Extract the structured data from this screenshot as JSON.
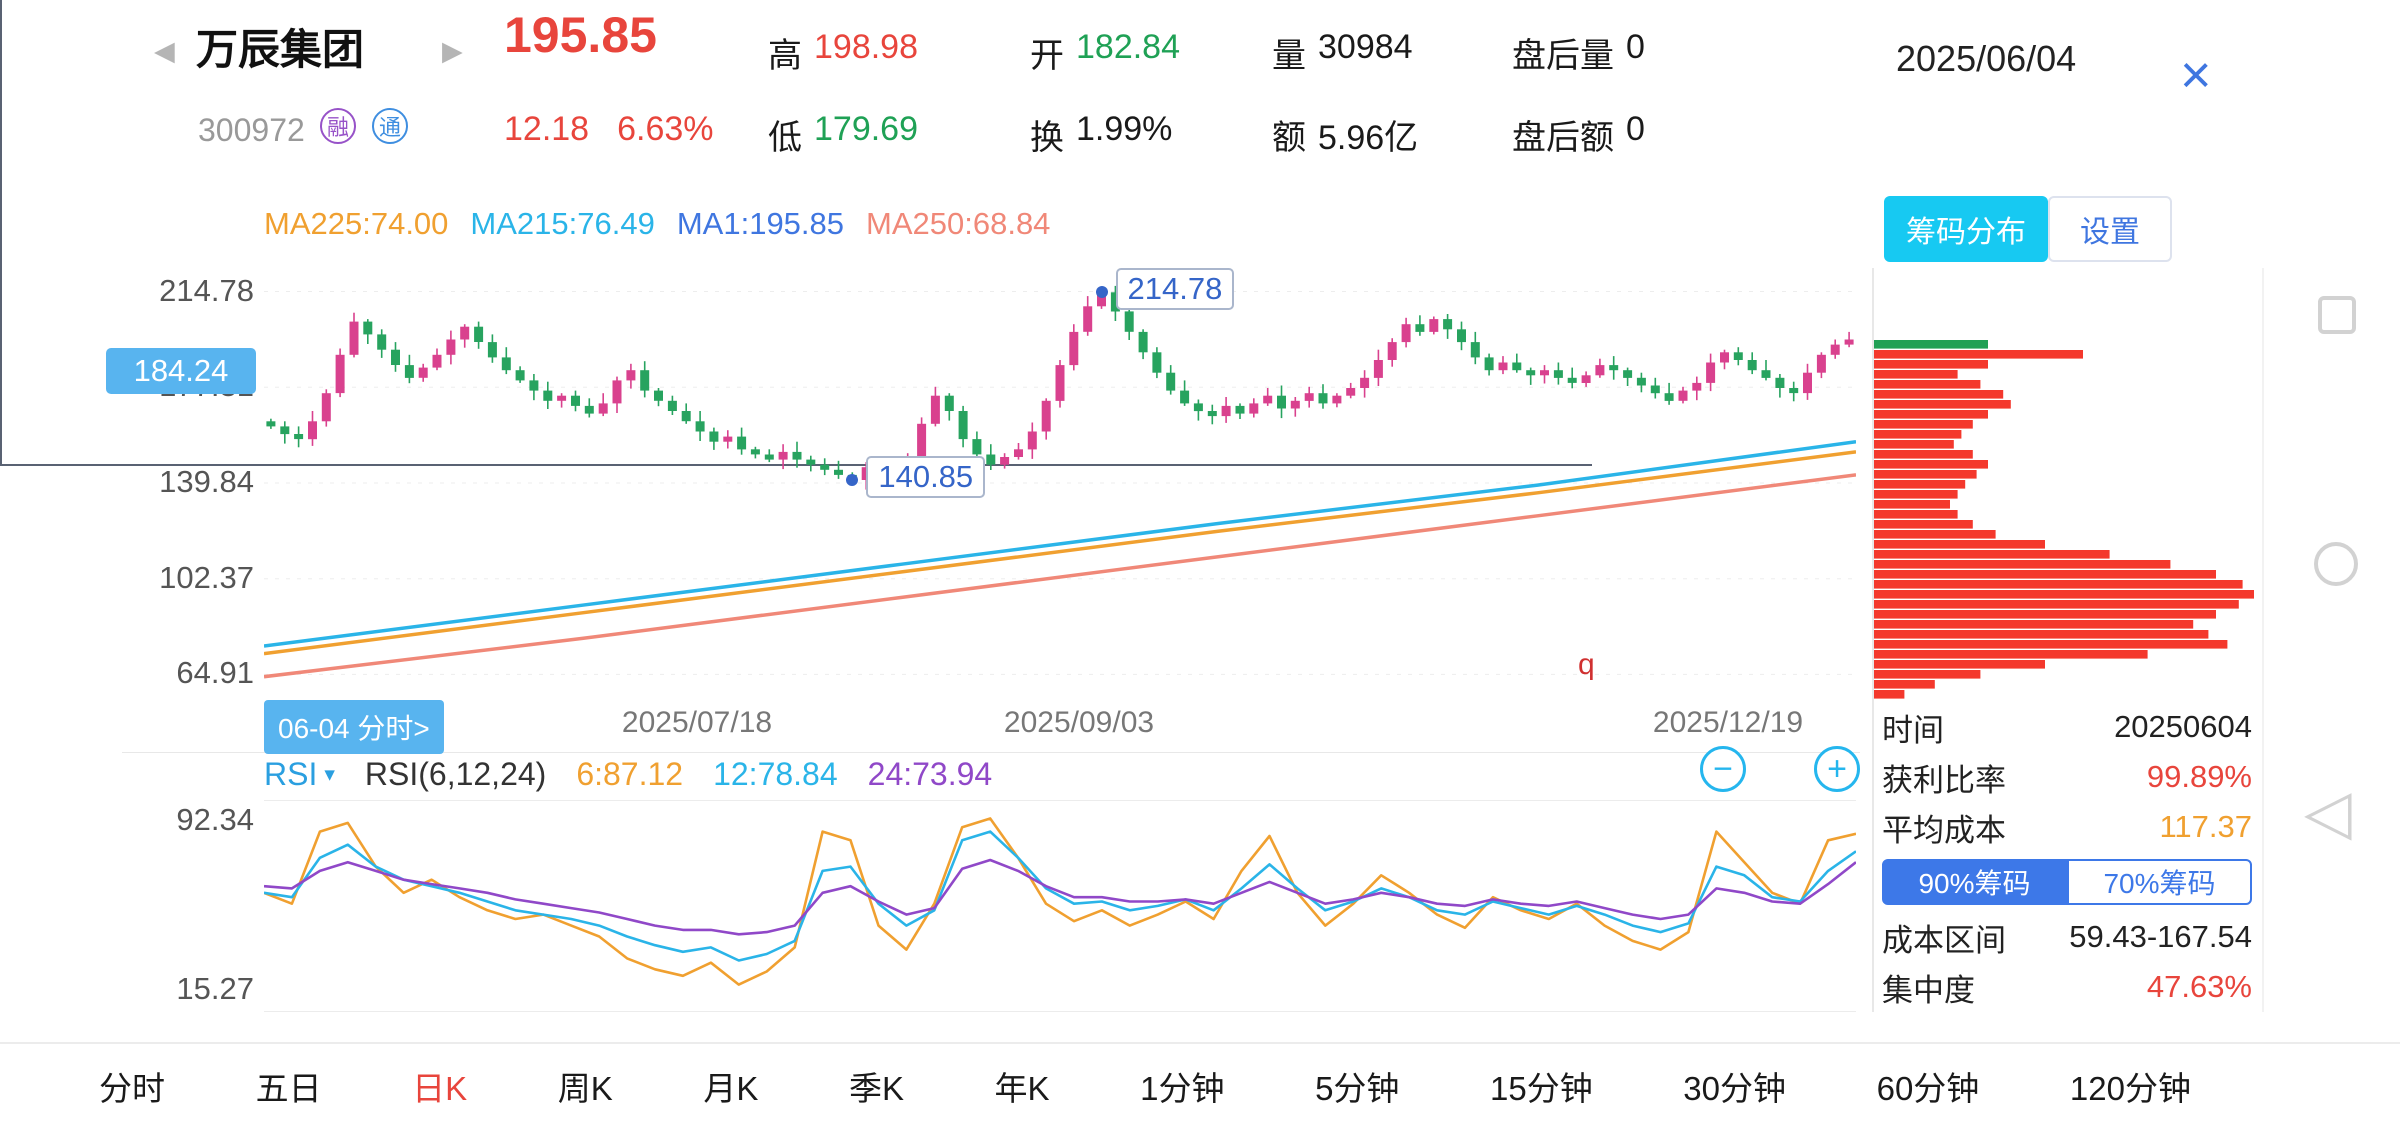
{
  "icons": {
    "prev_arrow": "◀",
    "next_arrow": "▶",
    "close": "×",
    "caret_down": "▾",
    "minus": "−",
    "plus": "+",
    "back_nav": "◁"
  },
  "colors": {
    "up_red": "#e8453c",
    "down_green": "#1fa155",
    "accent_blue": "#3f76e0",
    "cyan_button": "#17c9f2",
    "chip_blue": "#58b4ef"
  },
  "header": {
    "title": "万辰集团",
    "code": "300972",
    "badges": [
      "融",
      "通"
    ],
    "price": "195.85",
    "change": "12.18",
    "change_pct": "6.63%",
    "high_label": "高",
    "high": "198.98",
    "low_label": "低",
    "low": "179.69",
    "open_label": "开",
    "open": "182.84",
    "turnover_label": "换",
    "turnover": "1.99%",
    "volume_label": "量",
    "volume": "30984",
    "amount_label": "额",
    "amount": "5.96亿",
    "after_volume_label": "盘后量",
    "after_volume": "0",
    "after_amount_label": "盘后额",
    "after_amount": "0",
    "date": "2025/06/04"
  },
  "ma_row": {
    "ma_labels": [
      {
        "text": "MA225:74.00",
        "color": "#f0a030"
      },
      {
        "text": "MA215:76.49",
        "color": "#2ab4e8"
      },
      {
        "text": "MA1:195.85",
        "color": "#3f76e0"
      },
      {
        "text": "MA250:68.84",
        "color": "#f08878"
      }
    ],
    "chip_button": "筹码分布",
    "settings_button": "设置"
  },
  "x_axis": {
    "crosshair_chip": "06-04 分时>",
    "dates": [
      "2025/07/18",
      "2025/09/03",
      "2025/12/19"
    ],
    "stray_mark": "q"
  },
  "rsi_header": {
    "selector": "RSI",
    "formula": "RSI(6,12,24)",
    "values": [
      {
        "text": "6:87.12",
        "color": "#f0a030"
      },
      {
        "text": "12:78.84",
        "color": "#2ab4e8"
      },
      {
        "text": "24:73.94",
        "color": "#9048c8"
      }
    ]
  },
  "chip_panel": {
    "rows": [
      {
        "label": "时间",
        "value": "20250604",
        "color": "#222222"
      },
      {
        "label": "获利比率",
        "value": "99.89%",
        "color": "#e8453c"
      },
      {
        "label": "平均成本",
        "value": "117.37",
        "color": "#f0a030"
      }
    ],
    "tabs": [
      {
        "label": "90%筹码"
      },
      {
        "label": "70%筹码"
      }
    ],
    "selected_tab": 0,
    "rows2": [
      {
        "label": "成本区间",
        "value": "59.43-167.54",
        "color": "#222222"
      },
      {
        "label": "集中度",
        "value": "47.63%",
        "color": "#e8453c"
      }
    ]
  },
  "period_tabs": {
    "items": [
      "分时",
      "五日",
      "日K",
      "周K",
      "月K",
      "季K",
      "年K",
      "1分钟",
      "5分钟",
      "15分钟",
      "30分钟",
      "60分钟",
      "120分钟"
    ],
    "selected_index": 2
  },
  "chart_data": {
    "kline": {
      "type": "candlestick",
      "ylabels": [
        214.78,
        177.31,
        139.84,
        102.37,
        64.91
      ],
      "axis": {
        "min": 58,
        "max": 224
      },
      "first_open": 164,
      "closes": [
        162,
        159,
        157,
        164,
        175,
        190,
        203,
        198,
        192,
        186,
        181,
        185,
        190,
        196,
        201,
        195,
        189,
        184,
        180,
        176,
        172,
        174,
        170,
        167,
        171,
        180,
        184,
        176,
        172,
        168,
        164,
        160,
        156,
        158,
        153,
        151,
        149,
        152,
        149,
        147,
        145,
        143,
        141,
        146,
        144,
        142,
        150,
        163,
        174,
        168,
        157,
        151,
        147,
        150,
        153,
        160,
        172,
        186,
        199,
        209,
        214.5,
        207,
        199,
        191,
        183,
        176,
        171,
        168,
        166,
        170,
        167,
        171,
        174,
        169,
        172,
        175,
        171,
        174,
        177,
        181,
        188,
        195,
        202,
        199,
        204,
        200,
        195,
        189,
        184,
        187,
        184,
        182,
        184,
        181,
        179,
        182,
        186,
        184,
        181,
        178,
        175,
        172,
        176,
        179,
        187,
        191,
        188,
        184,
        181,
        177,
        175,
        183,
        190,
        194,
        196
      ],
      "markers": {
        "high": {
          "index": 60,
          "value": 214.78,
          "label": "214.78"
        },
        "low": {
          "index": 42,
          "value": 140.85,
          "label": "140.85"
        }
      },
      "crosshair": {
        "index": 6,
        "price": 184.24,
        "label": "184.24"
      },
      "up_color": "#d9418e",
      "down_color": "#27a35f",
      "ma_lines": [
        {
          "name": "MA225",
          "color": "#f0a030",
          "points": [
            [
              0,
              73
            ],
            [
              0.2,
              89
            ],
            [
              0.4,
              105
            ],
            [
              0.6,
              121
            ],
            [
              0.8,
              136
            ],
            [
              1,
              152
            ]
          ]
        },
        {
          "name": "MA215",
          "color": "#2ab4e8",
          "points": [
            [
              0,
              76
            ],
            [
              0.2,
              92
            ],
            [
              0.4,
              108
            ],
            [
              0.6,
              124
            ],
            [
              0.8,
              139
            ],
            [
              1,
              156
            ]
          ]
        },
        {
          "name": "MA250",
          "color": "#f08878",
          "points": [
            [
              0,
              64
            ],
            [
              0.2,
              79
            ],
            [
              0.4,
              95
            ],
            [
              0.6,
              111
            ],
            [
              0.8,
              127
            ],
            [
              1,
              143
            ]
          ]
        }
      ]
    },
    "rsi": {
      "type": "line",
      "range": [
        5,
        102
      ],
      "ylabels": [
        92.34,
        15.27
      ],
      "series": [
        {
          "name": "RSI6",
          "color": "#f0a030",
          "values": [
            60,
            55,
            88,
            92,
            72,
            60,
            66,
            58,
            52,
            48,
            50,
            45,
            40,
            30,
            25,
            22,
            28,
            18,
            24,
            35,
            88,
            84,
            45,
            34,
            55,
            90,
            94,
            76,
            55,
            47,
            52,
            45,
            50,
            56,
            48,
            70,
            86,
            60,
            45,
            55,
            68,
            60,
            50,
            44,
            58,
            52,
            48,
            55,
            45,
            38,
            34,
            42,
            88,
            74,
            60,
            55,
            84,
            87
          ]
        },
        {
          "name": "RSI12",
          "color": "#2ab4e8",
          "values": [
            60,
            58,
            76,
            82,
            72,
            66,
            63,
            60,
            56,
            52,
            50,
            48,
            45,
            40,
            36,
            33,
            35,
            29,
            32,
            38,
            70,
            72,
            55,
            45,
            52,
            84,
            88,
            76,
            62,
            55,
            56,
            52,
            54,
            57,
            52,
            62,
            73,
            62,
            52,
            56,
            62,
            58,
            52,
            50,
            56,
            53,
            50,
            54,
            50,
            45,
            42,
            46,
            72,
            68,
            58,
            56,
            70,
            79
          ]
        },
        {
          "name": "RSI24",
          "color": "#9048c8",
          "values": [
            63,
            62,
            70,
            74,
            70,
            66,
            64,
            62,
            60,
            57,
            55,
            53,
            51,
            48,
            45,
            43,
            43,
            41,
            42,
            45,
            60,
            63,
            56,
            50,
            53,
            71,
            75,
            70,
            63,
            58,
            58,
            56,
            56,
            57,
            55,
            60,
            65,
            60,
            55,
            57,
            60,
            58,
            55,
            54,
            57,
            55,
            54,
            56,
            53,
            50,
            48,
            50,
            62,
            60,
            56,
            55,
            64,
            74
          ]
        }
      ]
    },
    "chip_histogram": {
      "type": "histogram-horizontal",
      "green_bins": 1,
      "green_color": "#21a055",
      "red_color": "#f4382c",
      "widths": [
        0.3,
        0.55,
        0.3,
        0.22,
        0.28,
        0.34,
        0.36,
        0.3,
        0.26,
        0.23,
        0.21,
        0.26,
        0.3,
        0.27,
        0.24,
        0.22,
        0.2,
        0.22,
        0.26,
        0.32,
        0.45,
        0.62,
        0.78,
        0.9,
        0.97,
        1.0,
        0.96,
        0.9,
        0.84,
        0.88,
        0.93,
        0.72,
        0.45,
        0.28,
        0.16,
        0.08
      ]
    }
  }
}
